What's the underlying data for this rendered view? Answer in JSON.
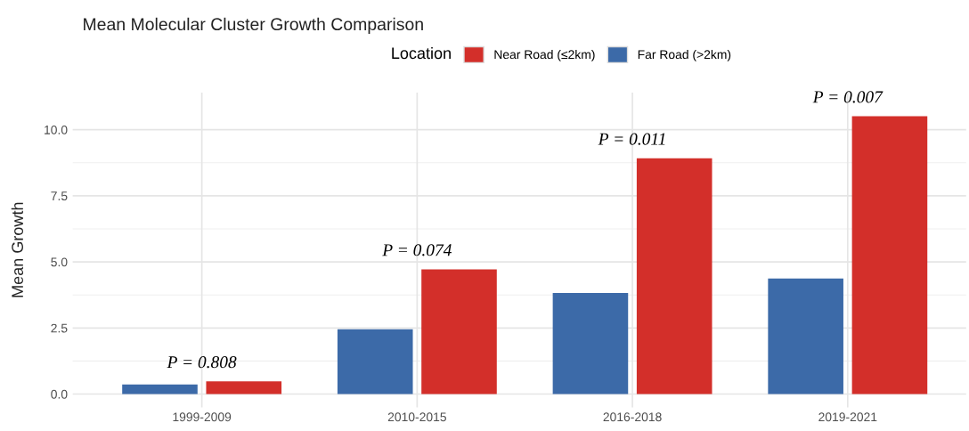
{
  "chart_data": {
    "type": "bar",
    "title": "Mean Molecular Cluster Growth Comparison",
    "ylabel": "Mean Growth",
    "legend_title": "Location",
    "categories": [
      "1999-2009",
      "2010-2015",
      "2016-2018",
      "2019-2021"
    ],
    "series": [
      {
        "name": "Near Road (≤2km)",
        "color": "#d32f2a",
        "values": [
          0.48,
          4.72,
          8.92,
          10.51
        ]
      },
      {
        "name": "Far Road (>2km)",
        "color": "#3c6aa8",
        "values": [
          0.36,
          2.45,
          3.82,
          4.37
        ]
      }
    ],
    "ylim": [
      -0.5,
      11.4
    ],
    "yticks": [
      {
        "value": 0,
        "label": "0.0"
      },
      2.5,
      {
        "value": 5,
        "label": "5.0"
      },
      7.5,
      {
        "value": 10,
        "label": "10.0"
      }
    ],
    "annotations": [
      "P = 0.808",
      "P = 0.074",
      "P = 0.011",
      "P = 0.007"
    ],
    "grid": true,
    "legend": "top"
  }
}
